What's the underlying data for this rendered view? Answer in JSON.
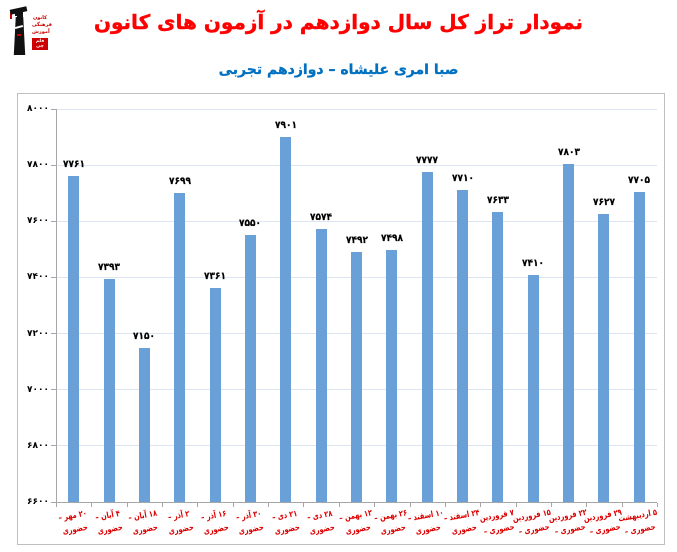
{
  "header": {
    "title": "نمودار تراز کل سال دوازدهم در آزمون های کانون",
    "subtitle": "صبا امری علیشاه – دوازدهم تجربی",
    "logo": {
      "lines": [
        "کانون",
        "فرهنگی",
        "آموزش"
      ],
      "badge": "قلم چی"
    }
  },
  "chart_data": {
    "type": "bar",
    "title": "نمودار تراز کل سال دوازدهم در آزمون های کانون",
    "subtitle": "صبا امری علیشاه – دوازدهم تجربی",
    "categories": [
      "۲۰ مهر – حضوری",
      "۴ آبان – حضوری",
      "۱۸ آبان – حضوری",
      "۲ آذر – حضوری",
      "۱۶ آذر – حضوری",
      "۳۰ آذر – حضوری",
      "۲۱ دی – حضوری",
      "۲۸ دی – حضوری",
      "۱۲ بهمن – حضوری",
      "۲۶ بهمن – حضوری",
      "۱۰ اسفند – حضوری",
      "۲۴ اسفند – حضوری",
      "۷ فروردین – حضوری",
      "۱۵ فروردین – حضوری",
      "۲۲ فروردین – حضوری",
      "۲۹ فروردین – حضوری",
      "۵ اردیبهشت – حضوری"
    ],
    "values": [
      7761,
      7393,
      7150,
      7699,
      7361,
      7550,
      7901,
      7574,
      7492,
      7498,
      7777,
      7710,
      7633,
      7410,
      7803,
      7627,
      7705
    ],
    "value_labels": [
      "۷۷۶۱",
      "۷۳۹۳",
      "۷۱۵۰",
      "۷۶۹۹",
      "۷۳۶۱",
      "۷۵۵۰",
      "۷۹۰۱",
      "۷۵۷۴",
      "۷۴۹۲",
      "۷۴۹۸",
      "۷۷۷۷",
      "۷۷۱۰",
      "۷۶۳۳",
      "۷۴۱۰",
      "۷۸۰۳",
      "۷۶۲۷",
      "۷۷۰۵"
    ],
    "ylim": [
      6600,
      8000
    ],
    "ytick_step": 200,
    "ytick_labels": [
      "۶۶۰۰",
      "۶۸۰۰",
      "۷۰۰۰",
      "۷۲۰۰",
      "۷۴۰۰",
      "۷۶۰۰",
      "۷۸۰۰",
      "۸۰۰۰"
    ],
    "grid": true,
    "legend": false,
    "bar_color": "#69a0d7",
    "grid_color": "#dce6f2",
    "axis_color": "#a6a6a6",
    "xlabel_color": "#dd0000",
    "title_color": "#ff0000",
    "subtitle_color": "#0070c0"
  }
}
